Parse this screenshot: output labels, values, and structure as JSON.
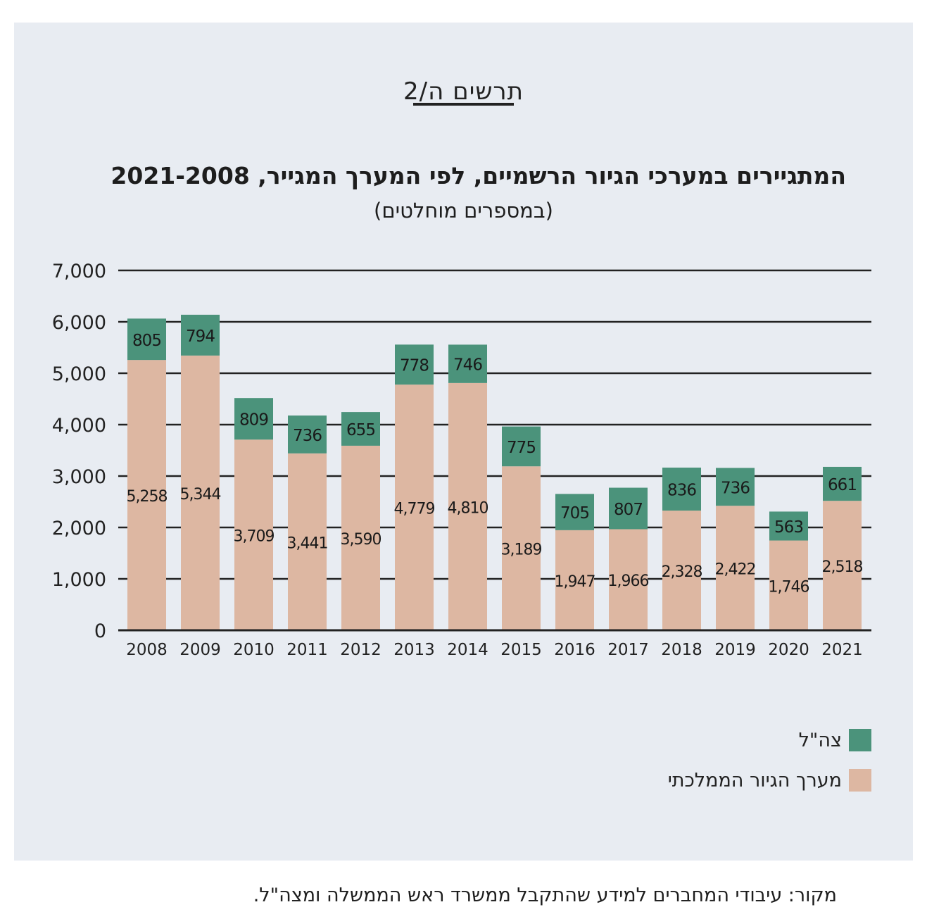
{
  "figure_label": "תרשים ה/2",
  "source": "מקור: עיבודי המחברים למידע שהתקבל ממשרד ראש הממשלה ומצה\"ל.",
  "chart_data": {
    "type": "bar",
    "stacked": true,
    "title": "המתגיירים במערכי הגיור הרשמיים, לפי המערך המגייר, 2021-2008",
    "subtitle": "(במספרים מוחלטים)",
    "categories": [
      "2008",
      "2009",
      "2010",
      "2011",
      "2012",
      "2013",
      "2014",
      "2015",
      "2016",
      "2017",
      "2018",
      "2019",
      "2020",
      "2021"
    ],
    "ylim": [
      0,
      7000
    ],
    "yticks": [
      0,
      1000,
      2000,
      3000,
      4000,
      5000,
      6000,
      7000
    ],
    "ytick_labels": [
      "0",
      "1,000",
      "2,000",
      "3,000",
      "4,000",
      "5,000",
      "6,000",
      "7,000"
    ],
    "grid": true,
    "legend_position": "bottom-right",
    "series": [
      {
        "name": "מערך הגיור הממלכתי",
        "color": "#ddb7a2",
        "values": [
          5258,
          5344,
          3709,
          3441,
          3590,
          4779,
          4810,
          3189,
          1947,
          1966,
          2328,
          2422,
          1746,
          2518
        ],
        "labels": [
          "5,258",
          "5,344",
          "3,709",
          "3,441",
          "3,590",
          "4,779",
          "4,810",
          "3,189",
          "1,947",
          "1,966",
          "2,328",
          "2,422",
          "1,746",
          "2,518"
        ]
      },
      {
        "name": "צה\"ל",
        "color": "#4b937b",
        "values": [
          805,
          794,
          809,
          736,
          655,
          778,
          746,
          775,
          705,
          807,
          836,
          736,
          563,
          661
        ],
        "labels": [
          "805",
          "794",
          "809",
          "736",
          "655",
          "778",
          "746",
          "775",
          "705",
          "807",
          "836",
          "736",
          "563",
          "661"
        ]
      }
    ]
  }
}
